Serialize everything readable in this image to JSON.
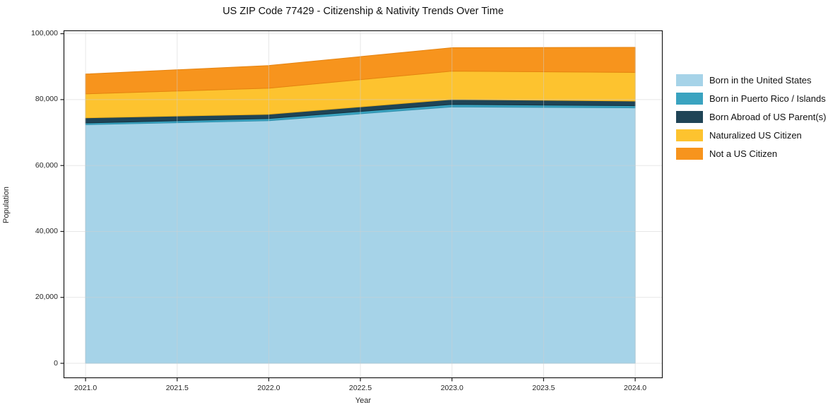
{
  "title": "US ZIP Code 77429 - Citizenship & Nativity Trends Over Time",
  "chart_data": {
    "type": "area",
    "stacked": true,
    "title": "US ZIP Code 77429 - Citizenship & Nativity Trends Over Time",
    "xlabel": "Year",
    "ylabel": "Population",
    "x": [
      2021,
      2022,
      2023,
      2024
    ],
    "series": [
      {
        "name": "Born in the United States",
        "values": [
          72400,
          73600,
          77800,
          77500
        ],
        "color": "#a6d3e8",
        "edge": "#8fc3dc"
      },
      {
        "name": "Born in Puerto Rico / Islands",
        "values": [
          500,
          650,
          750,
          650
        ],
        "color": "#3aa3c0",
        "edge": "#2e90ad"
      },
      {
        "name": "Born Abroad of US Parent(s)",
        "values": [
          1550,
          1300,
          1500,
          1400
        ],
        "color": "#1f4456",
        "edge": "#16323f"
      },
      {
        "name": "Naturalized US Citizen",
        "values": [
          7300,
          7900,
          8600,
          8700
        ],
        "color": "#fdc32f",
        "edge": "#edb01c"
      },
      {
        "name": "Not a US Citizen",
        "values": [
          6000,
          6900,
          7100,
          7600
        ],
        "color": "#f7941d",
        "edge": "#e58310"
      }
    ],
    "totals": [
      87750,
      90350,
      95750,
      95850
    ],
    "xlim": [
      2020.88,
      2024.15
    ],
    "ylim": [
      -4500,
      101000
    ],
    "xtick_values": [
      2021.0,
      2021.5,
      2022.0,
      2022.5,
      2023.0,
      2023.5,
      2024.0
    ],
    "xtick_labels": [
      "2021.0",
      "2021.5",
      "2022.0",
      "2022.5",
      "2023.0",
      "2023.5",
      "2024.0"
    ],
    "ytick_values": [
      0,
      20000,
      40000,
      60000,
      80000,
      100000
    ],
    "ytick_labels": [
      "0",
      "20,000",
      "40,000",
      "60,000",
      "80,000",
      "100,000"
    ],
    "grid": true,
    "grid_color": "#cfcfcf",
    "spine_color": "#1a1a1a",
    "legend_position": "right"
  }
}
